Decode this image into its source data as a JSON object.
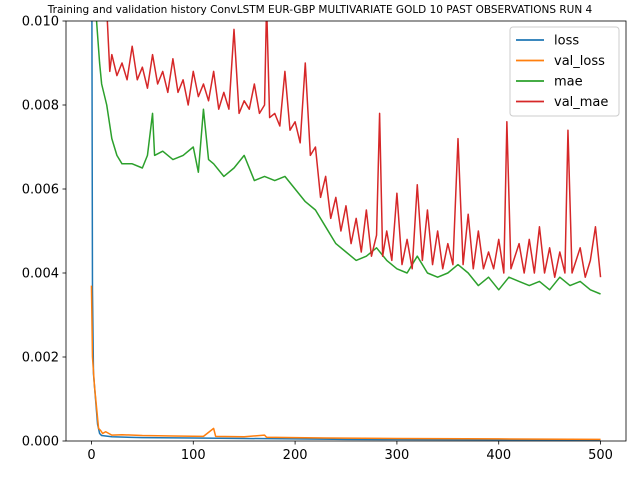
{
  "chart_data": {
    "type": "line",
    "title": "Training and validation history ConvLSTM EUR-GBP MULTIVARIATE GOLD 10 PAST OBSERVATIONS RUN 4",
    "xlabel": "",
    "ylabel": "",
    "xlim": [
      -25,
      525
    ],
    "ylim": [
      0,
      0.01
    ],
    "xticks": [
      0,
      100,
      200,
      300,
      400,
      500
    ],
    "xtick_labels": [
      "0",
      "100",
      "200",
      "300",
      "400",
      "500"
    ],
    "yticks": [
      0,
      0.002,
      0.004,
      0.006,
      0.008,
      0.01
    ],
    "ytick_labels": [
      "0.000",
      "0.002",
      "0.004",
      "0.006",
      "0.008",
      "0.010"
    ],
    "grid": false,
    "legend_position": "top-right",
    "series": [
      {
        "name": "loss",
        "color": "#1f77b4",
        "points": [
          [
            0,
            0.0155
          ],
          [
            1,
            0.0036
          ],
          [
            2,
            0.0016
          ],
          [
            4,
            0.001
          ],
          [
            6,
            0.0004
          ],
          [
            8,
            0.00018
          ],
          [
            10,
            0.00013
          ],
          [
            20,
            0.0001
          ],
          [
            50,
            8e-05
          ],
          [
            100,
            7e-05
          ],
          [
            150,
            6e-05
          ],
          [
            200,
            5e-05
          ],
          [
            250,
            4e-05
          ],
          [
            300,
            3.5e-05
          ],
          [
            400,
            3e-05
          ],
          [
            500,
            2.5e-05
          ]
        ]
      },
      {
        "name": "val_loss",
        "color": "#ff7f0e",
        "points": [
          [
            0,
            0.0037
          ],
          [
            1,
            0.002
          ],
          [
            3,
            0.0013
          ],
          [
            5,
            0.0008
          ],
          [
            7,
            0.0003
          ],
          [
            9,
            0.00025
          ],
          [
            11,
            0.00018
          ],
          [
            14,
            0.00022
          ],
          [
            20,
            0.00014
          ],
          [
            30,
            0.00015
          ],
          [
            50,
            0.00013
          ],
          [
            80,
            0.00012
          ],
          [
            110,
            0.00011
          ],
          [
            120,
            0.0003
          ],
          [
            122,
            0.00011
          ],
          [
            150,
            0.0001
          ],
          [
            170,
            0.00014
          ],
          [
            172,
            9e-05
          ],
          [
            200,
            8e-05
          ],
          [
            230,
            7e-05
          ],
          [
            300,
            6e-05
          ],
          [
            400,
            5e-05
          ],
          [
            500,
            4e-05
          ]
        ]
      },
      {
        "name": "mae",
        "color": "#2ca02c",
        "points": [
          [
            0,
            0.0105
          ],
          [
            5,
            0.01
          ],
          [
            8,
            0.009
          ],
          [
            10,
            0.0085
          ],
          [
            15,
            0.008
          ],
          [
            20,
            0.0072
          ],
          [
            25,
            0.0068
          ],
          [
            30,
            0.0066
          ],
          [
            40,
            0.0066
          ],
          [
            50,
            0.0065
          ],
          [
            55,
            0.0068
          ],
          [
            60,
            0.0078
          ],
          [
            62,
            0.0068
          ],
          [
            70,
            0.0069
          ],
          [
            80,
            0.0067
          ],
          [
            90,
            0.0068
          ],
          [
            100,
            0.007
          ],
          [
            105,
            0.0064
          ],
          [
            110,
            0.0079
          ],
          [
            115,
            0.0067
          ],
          [
            120,
            0.0066
          ],
          [
            130,
            0.0063
          ],
          [
            140,
            0.0065
          ],
          [
            150,
            0.0068
          ],
          [
            160,
            0.0062
          ],
          [
            170,
            0.0063
          ],
          [
            180,
            0.0062
          ],
          [
            190,
            0.0063
          ],
          [
            200,
            0.006
          ],
          [
            210,
            0.0057
          ],
          [
            220,
            0.0055
          ],
          [
            230,
            0.0051
          ],
          [
            240,
            0.0047
          ],
          [
            250,
            0.0045
          ],
          [
            260,
            0.0043
          ],
          [
            270,
            0.0044
          ],
          [
            280,
            0.0046
          ],
          [
            290,
            0.0043
          ],
          [
            300,
            0.0041
          ],
          [
            310,
            0.004
          ],
          [
            320,
            0.0044
          ],
          [
            330,
            0.004
          ],
          [
            340,
            0.0039
          ],
          [
            350,
            0.004
          ],
          [
            360,
            0.0042
          ],
          [
            370,
            0.004
          ],
          [
            380,
            0.0037
          ],
          [
            390,
            0.0039
          ],
          [
            400,
            0.0036
          ],
          [
            410,
            0.0039
          ],
          [
            420,
            0.0038
          ],
          [
            430,
            0.0037
          ],
          [
            440,
            0.0038
          ],
          [
            450,
            0.0036
          ],
          [
            460,
            0.0039
          ],
          [
            470,
            0.0037
          ],
          [
            480,
            0.0038
          ],
          [
            490,
            0.0036
          ],
          [
            500,
            0.0035
          ]
        ]
      },
      {
        "name": "val_mae",
        "color": "#d62728",
        "points": [
          [
            0,
            0.0105
          ],
          [
            15,
            0.0103
          ],
          [
            18,
            0.0088
          ],
          [
            20,
            0.0092
          ],
          [
            25,
            0.0087
          ],
          [
            30,
            0.009
          ],
          [
            35,
            0.0086
          ],
          [
            40,
            0.0094
          ],
          [
            45,
            0.0086
          ],
          [
            50,
            0.0089
          ],
          [
            55,
            0.0084
          ],
          [
            60,
            0.0092
          ],
          [
            65,
            0.0085
          ],
          [
            70,
            0.0088
          ],
          [
            75,
            0.0083
          ],
          [
            80,
            0.0091
          ],
          [
            85,
            0.0083
          ],
          [
            90,
            0.0086
          ],
          [
            95,
            0.008
          ],
          [
            100,
            0.0088
          ],
          [
            105,
            0.0082
          ],
          [
            110,
            0.0085
          ],
          [
            115,
            0.0081
          ],
          [
            120,
            0.0088
          ],
          [
            125,
            0.0079
          ],
          [
            130,
            0.0083
          ],
          [
            135,
            0.0079
          ],
          [
            140,
            0.0098
          ],
          [
            145,
            0.0078
          ],
          [
            150,
            0.0081
          ],
          [
            155,
            0.0079
          ],
          [
            160,
            0.0085
          ],
          [
            165,
            0.0078
          ],
          [
            170,
            0.008
          ],
          [
            172,
            0.0104
          ],
          [
            175,
            0.0077
          ],
          [
            180,
            0.0078
          ],
          [
            185,
            0.0075
          ],
          [
            190,
            0.0088
          ],
          [
            195,
            0.0074
          ],
          [
            200,
            0.0076
          ],
          [
            205,
            0.0071
          ],
          [
            210,
            0.009
          ],
          [
            215,
            0.0068
          ],
          [
            220,
            0.007
          ],
          [
            225,
            0.0058
          ],
          [
            230,
            0.0063
          ],
          [
            235,
            0.0053
          ],
          [
            240,
            0.0058
          ],
          [
            245,
            0.005
          ],
          [
            250,
            0.0056
          ],
          [
            255,
            0.0047
          ],
          [
            260,
            0.0053
          ],
          [
            265,
            0.0045
          ],
          [
            270,
            0.0055
          ],
          [
            275,
            0.0044
          ],
          [
            280,
            0.0049
          ],
          [
            283,
            0.0078
          ],
          [
            286,
            0.0044
          ],
          [
            290,
            0.005
          ],
          [
            295,
            0.0043
          ],
          [
            300,
            0.0059
          ],
          [
            305,
            0.0042
          ],
          [
            310,
            0.0048
          ],
          [
            315,
            0.0041
          ],
          [
            320,
            0.0061
          ],
          [
            325,
            0.0043
          ],
          [
            330,
            0.0055
          ],
          [
            335,
            0.0042
          ],
          [
            340,
            0.005
          ],
          [
            345,
            0.0041
          ],
          [
            350,
            0.0047
          ],
          [
            355,
            0.0042
          ],
          [
            360,
            0.0072
          ],
          [
            365,
            0.0042
          ],
          [
            370,
            0.0054
          ],
          [
            375,
            0.0041
          ],
          [
            380,
            0.005
          ],
          [
            385,
            0.0041
          ],
          [
            390,
            0.0045
          ],
          [
            395,
            0.0041
          ],
          [
            400,
            0.0048
          ],
          [
            405,
            0.004
          ],
          [
            408,
            0.0076
          ],
          [
            412,
            0.0041
          ],
          [
            420,
            0.0047
          ],
          [
            425,
            0.004
          ],
          [
            430,
            0.0048
          ],
          [
            435,
            0.004
          ],
          [
            440,
            0.0051
          ],
          [
            445,
            0.004
          ],
          [
            450,
            0.0046
          ],
          [
            455,
            0.0039
          ],
          [
            460,
            0.0045
          ],
          [
            465,
            0.004
          ],
          [
            468,
            0.0074
          ],
          [
            472,
            0.004
          ],
          [
            480,
            0.0046
          ],
          [
            485,
            0.0039
          ],
          [
            490,
            0.0043
          ],
          [
            495,
            0.0051
          ],
          [
            500,
            0.0039
          ]
        ]
      }
    ]
  }
}
